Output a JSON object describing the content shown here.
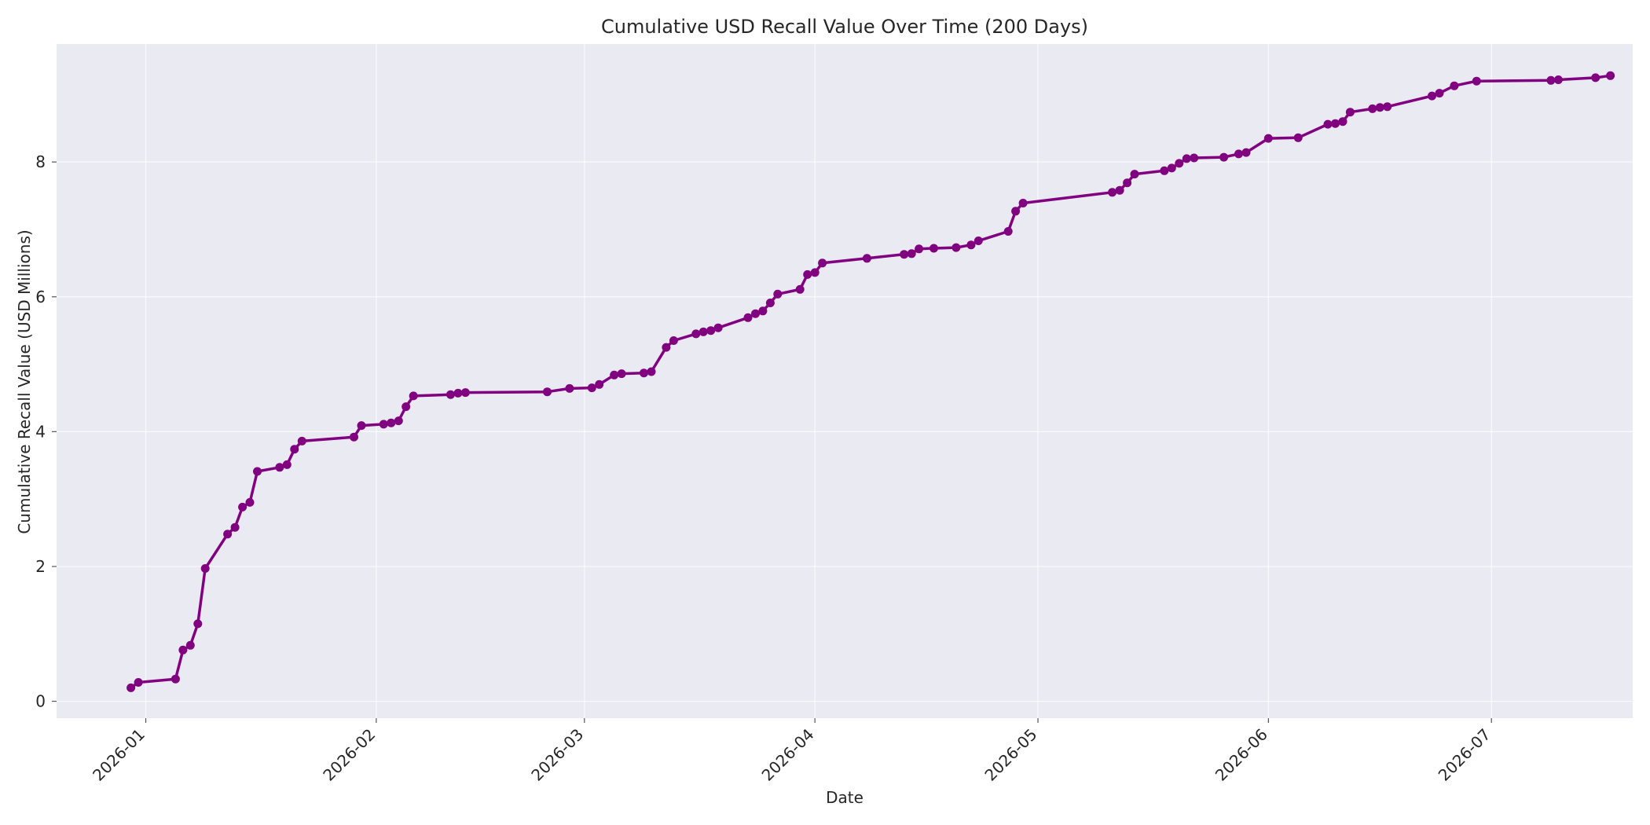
{
  "chart_data": {
    "type": "line",
    "title": "Cumulative USD Recall Value Over Time (200 Days)",
    "xlabel": "Date",
    "ylabel": "Cumulative Recall Value (USD Millions)",
    "x_range": [
      "2025-12-20",
      "2026-07-20"
    ],
    "ylim": [
      -0.25,
      9.75
    ],
    "y_ticks": [
      0,
      2,
      4,
      6,
      8
    ],
    "x_ticks": [
      "2026-01-01",
      "2026-02-01",
      "2026-03-01",
      "2026-04-01",
      "2026-05-01",
      "2026-06-01",
      "2026-07-01"
    ],
    "x_tick_labels": [
      "2026-01",
      "2026-02",
      "2026-03",
      "2026-04",
      "2026-05",
      "2026-06",
      "2026-07"
    ],
    "grid": true,
    "colors": {
      "line": "#800080",
      "plot_bg": "#EAEAF2"
    },
    "series": [
      {
        "points": [
          [
            "2025-12-30",
            0.2
          ],
          [
            "2025-12-31",
            0.28
          ],
          [
            "2026-01-05",
            0.33
          ],
          [
            "2026-01-06",
            0.76
          ],
          [
            "2026-01-07",
            0.83
          ],
          [
            "2026-01-08",
            1.15
          ],
          [
            "2026-01-09",
            1.97
          ],
          [
            "2026-01-12",
            2.48
          ],
          [
            "2026-01-13",
            2.58
          ],
          [
            "2026-01-14",
            2.88
          ],
          [
            "2026-01-15",
            2.95
          ],
          [
            "2026-01-16",
            3.41
          ],
          [
            "2026-01-19",
            3.47
          ],
          [
            "2026-01-20",
            3.51
          ],
          [
            "2026-01-21",
            3.74
          ],
          [
            "2026-01-22",
            3.86
          ],
          [
            "2026-01-29",
            3.92
          ],
          [
            "2026-01-30",
            4.09
          ],
          [
            "2026-02-02",
            4.11
          ],
          [
            "2026-02-03",
            4.13
          ],
          [
            "2026-02-04",
            4.16
          ],
          [
            "2026-02-05",
            4.37
          ],
          [
            "2026-02-06",
            4.53
          ],
          [
            "2026-02-11",
            4.55
          ],
          [
            "2026-02-12",
            4.57
          ],
          [
            "2026-02-13",
            4.58
          ],
          [
            "2026-02-24",
            4.59
          ],
          [
            "2026-02-27",
            4.64
          ],
          [
            "2026-03-02",
            4.65
          ],
          [
            "2026-03-03",
            4.7
          ],
          [
            "2026-03-05",
            4.84
          ],
          [
            "2026-03-06",
            4.86
          ],
          [
            "2026-03-09",
            4.87
          ],
          [
            "2026-03-10",
            4.89
          ],
          [
            "2026-03-12",
            5.25
          ],
          [
            "2026-03-13",
            5.35
          ],
          [
            "2026-03-16",
            5.45
          ],
          [
            "2026-03-17",
            5.48
          ],
          [
            "2026-03-18",
            5.5
          ],
          [
            "2026-03-19",
            5.54
          ],
          [
            "2026-03-23",
            5.69
          ],
          [
            "2026-03-24",
            5.75
          ],
          [
            "2026-03-25",
            5.79
          ],
          [
            "2026-03-26",
            5.91
          ],
          [
            "2026-03-27",
            6.04
          ],
          [
            "2026-03-30",
            6.11
          ],
          [
            "2026-03-31",
            6.33
          ],
          [
            "2026-04-01",
            6.36
          ],
          [
            "2026-04-02",
            6.5
          ],
          [
            "2026-04-08",
            6.57
          ],
          [
            "2026-04-13",
            6.63
          ],
          [
            "2026-04-14",
            6.64
          ],
          [
            "2026-04-15",
            6.71
          ],
          [
            "2026-04-17",
            6.72
          ],
          [
            "2026-04-20",
            6.73
          ],
          [
            "2026-04-22",
            6.77
          ],
          [
            "2026-04-23",
            6.83
          ],
          [
            "2026-04-27",
            6.97
          ],
          [
            "2026-04-28",
            7.27
          ],
          [
            "2026-04-29",
            7.39
          ],
          [
            "2026-05-11",
            7.55
          ],
          [
            "2026-05-12",
            7.58
          ],
          [
            "2026-05-13",
            7.69
          ],
          [
            "2026-05-14",
            7.82
          ],
          [
            "2026-05-18",
            7.87
          ],
          [
            "2026-05-19",
            7.91
          ],
          [
            "2026-05-20",
            7.98
          ],
          [
            "2026-05-21",
            8.05
          ],
          [
            "2026-05-22",
            8.06
          ],
          [
            "2026-05-26",
            8.07
          ],
          [
            "2026-05-28",
            8.12
          ],
          [
            "2026-05-29",
            8.14
          ],
          [
            "2026-06-01",
            8.35
          ],
          [
            "2026-06-05",
            8.36
          ],
          [
            "2026-06-09",
            8.56
          ],
          [
            "2026-06-10",
            8.57
          ],
          [
            "2026-06-11",
            8.6
          ],
          [
            "2026-06-12",
            8.74
          ],
          [
            "2026-06-15",
            8.79
          ],
          [
            "2026-06-16",
            8.81
          ],
          [
            "2026-06-17",
            8.82
          ],
          [
            "2026-06-23",
            8.98
          ],
          [
            "2026-06-24",
            9.02
          ],
          [
            "2026-06-26",
            9.13
          ],
          [
            "2026-06-29",
            9.2
          ],
          [
            "2026-07-09",
            9.21
          ],
          [
            "2026-07-10",
            9.22
          ],
          [
            "2026-07-15",
            9.25
          ],
          [
            "2026-07-17",
            9.28
          ]
        ]
      }
    ]
  }
}
